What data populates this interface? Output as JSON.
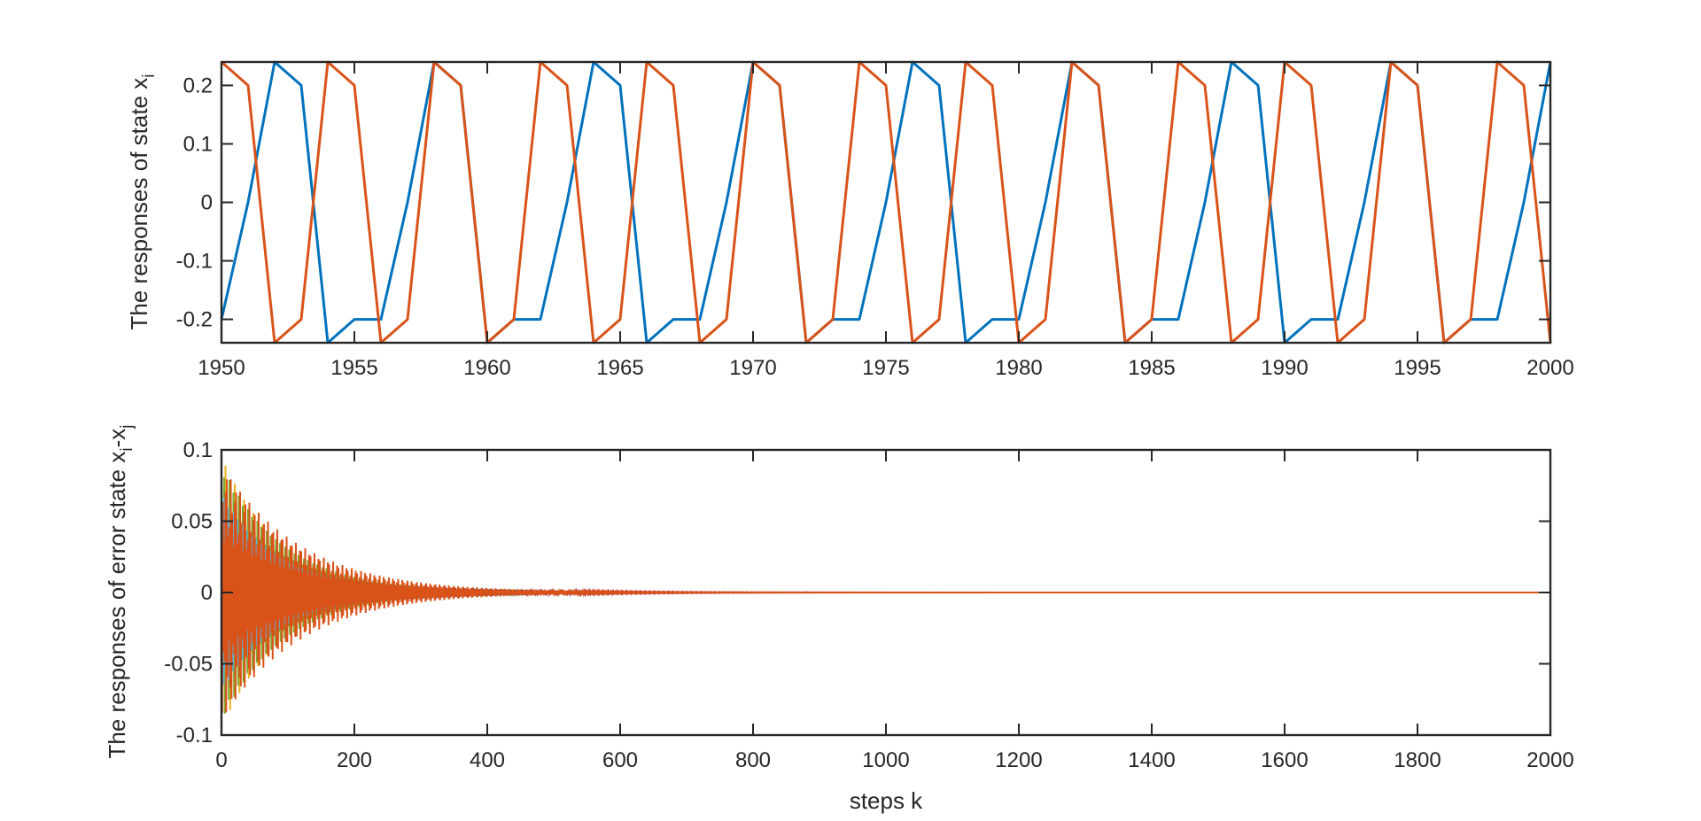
{
  "chart_data": [
    {
      "type": "line",
      "title": "",
      "xlabel": "",
      "ylabel": "The responses of state x",
      "ylabel_subscript": "i",
      "xlim": [
        1950,
        2000
      ],
      "ylim": [
        -0.24,
        0.24
      ],
      "xticks": [
        1950,
        1955,
        1960,
        1965,
        1970,
        1975,
        1980,
        1985,
        1990,
        1995,
        2000
      ],
      "yticks": [
        -0.2,
        -0.1,
        0,
        0.1,
        0.2
      ],
      "xtick_labels": [
        "1950",
        "1955",
        "1960",
        "1965",
        "1970",
        "1975",
        "1980",
        "1985",
        "1990",
        "1995",
        "2000"
      ],
      "ytick_labels": [
        "-0.2",
        "-0.1",
        "0",
        "0.1",
        "0.2"
      ],
      "grid": false,
      "legend": "none",
      "series": [
        {
          "color": "#0072BD",
          "pattern": [
            -0.2,
            0,
            0.24,
            0.2,
            -0.24,
            -0.2
          ],
          "start_x": 1950,
          "end_x": 2000
        },
        {
          "color": "#D95319",
          "pattern": [
            0.24,
            0.2,
            -0.24,
            -0.2
          ],
          "start_x": 1950,
          "end_x": 2000
        }
      ]
    },
    {
      "type": "line",
      "title": "",
      "xlabel": "steps k",
      "ylabel": "The responses of error state x",
      "ylabel_subscript_1": "i",
      "ylabel_mid": "-x",
      "ylabel_subscript_2": "j",
      "xlim": [
        0,
        2000
      ],
      "ylim": [
        -0.1,
        0.1
      ],
      "xticks": [
        0,
        200,
        400,
        600,
        800,
        1000,
        1200,
        1400,
        1600,
        1800,
        2000
      ],
      "yticks": [
        -0.1,
        -0.05,
        0,
        0.05,
        0.1
      ],
      "xtick_labels": [
        "0",
        "200",
        "400",
        "600",
        "800",
        "1000",
        "1200",
        "1400",
        "1600",
        "1800",
        "2000"
      ],
      "ytick_labels": [
        "-0.1",
        "-0.05",
        "0",
        "0.05",
        "0.1"
      ],
      "grid": false,
      "legend": "none",
      "description_of_series": "multiple decaying oscillatory error signals converging to 0",
      "series": [
        {
          "color": "#0072BD",
          "amplitude": 0.065,
          "decay": 0.012
        },
        {
          "color": "#EDB120",
          "amplitude": 0.095,
          "decay": 0.011
        },
        {
          "color": "#77AC30",
          "amplitude": 0.09,
          "decay": 0.0105
        },
        {
          "color": "#4DBEEE",
          "amplitude": 0.07,
          "decay": 0.0115
        },
        {
          "color": "#A2142F",
          "amplitude": 0.03,
          "decay": 0.0065
        },
        {
          "color": "#7E2F8E",
          "amplitude": 0.05,
          "decay": 0.01
        },
        {
          "color": "#D95319",
          "amplitude": 0.09,
          "decay": 0.0085
        }
      ]
    }
  ]
}
